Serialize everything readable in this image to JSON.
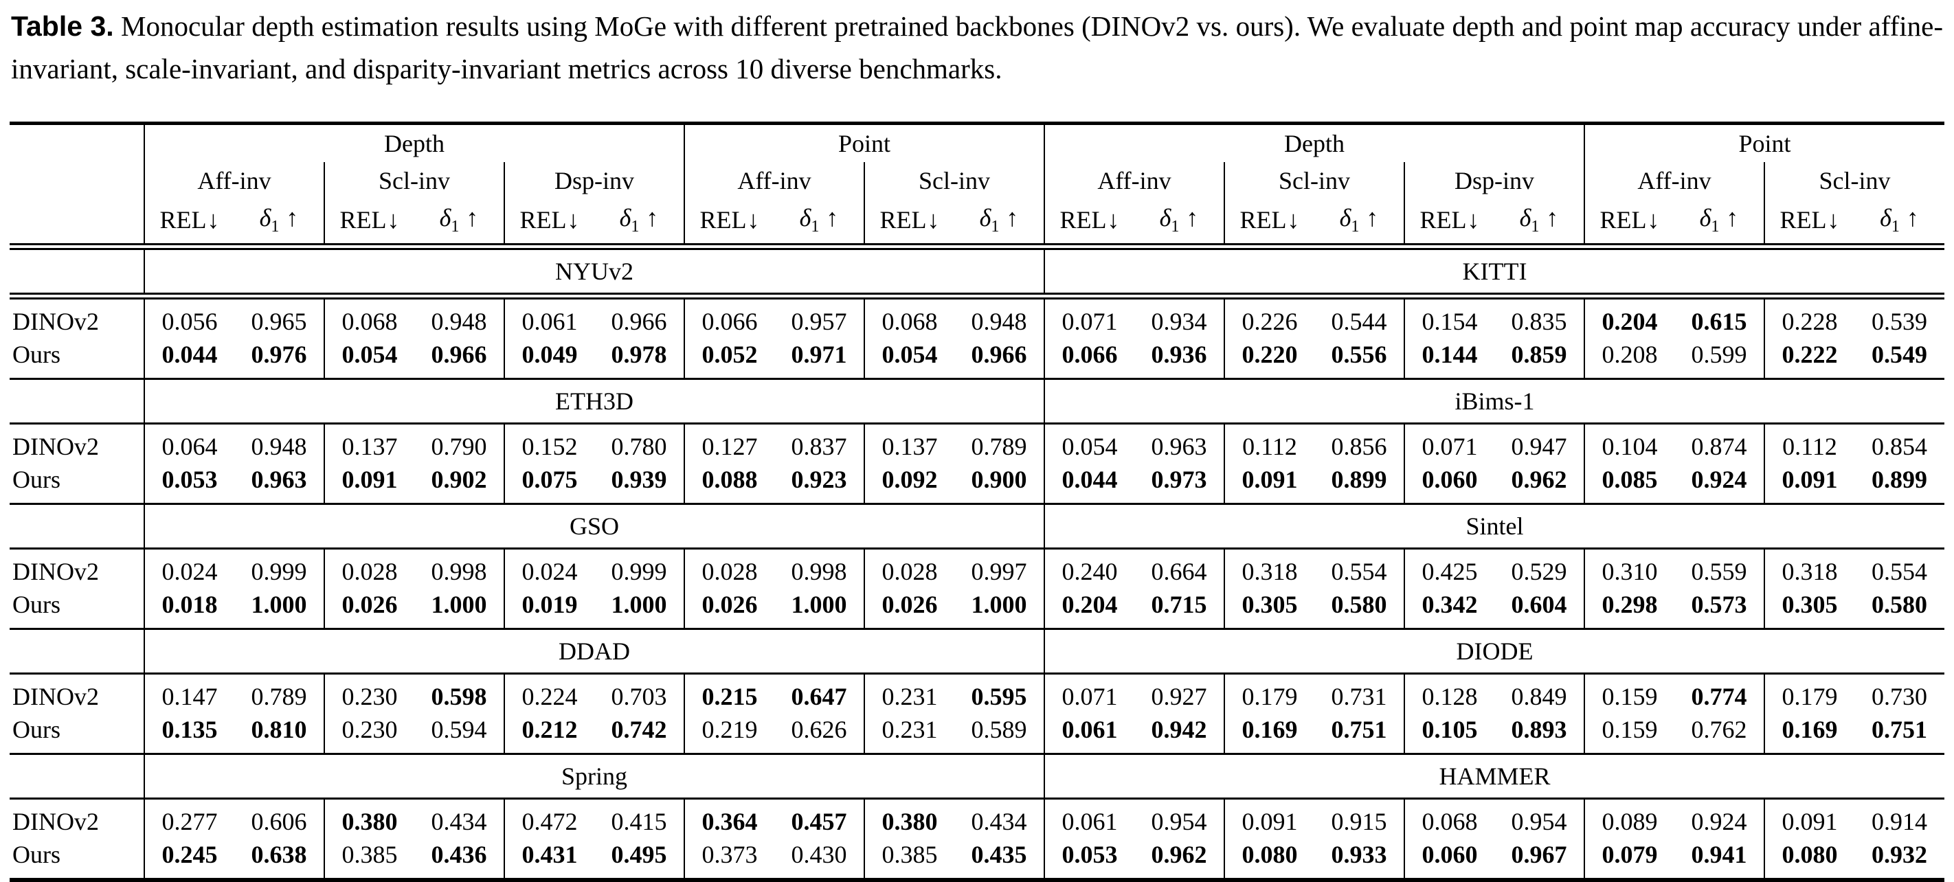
{
  "caption": {
    "label": "Table 3.",
    "text": "Monocular depth estimation results using MoGe with different pretrained backbones (DINOv2 vs. ours). We evaluate depth and point map accuracy under affine-invariant, scale-invariant, and disparity-invariant metrics across 10 diverse benchmarks."
  },
  "table": {
    "top_groups": [
      "Depth",
      "Point"
    ],
    "subgroups": [
      "Aff-inv",
      "Scl-inv",
      "Dsp-inv",
      "Aff-inv",
      "Scl-inv"
    ],
    "metrics": {
      "rel": "REL",
      "down": "↓",
      "delta": "δ",
      "sub": "1",
      "up": "↑"
    },
    "sections": [
      {
        "left_benchmark": "NYUv2",
        "right_benchmark": "KITTI",
        "rows": [
          {
            "model": "DINOv2",
            "left": [
              "0.056",
              "0.965",
              "0.068",
              "0.948",
              "0.061",
              "0.966",
              "0.066",
              "0.957",
              "0.068",
              "0.948"
            ],
            "left_bold": [
              0,
              0,
              0,
              0,
              0,
              0,
              0,
              0,
              0,
              0
            ],
            "right": [
              "0.071",
              "0.934",
              "0.226",
              "0.544",
              "0.154",
              "0.835",
              "0.204",
              "0.615",
              "0.228",
              "0.539"
            ],
            "right_bold": [
              0,
              0,
              0,
              0,
              0,
              0,
              1,
              1,
              0,
              0
            ]
          },
          {
            "model": "Ours",
            "left": [
              "0.044",
              "0.976",
              "0.054",
              "0.966",
              "0.049",
              "0.978",
              "0.052",
              "0.971",
              "0.054",
              "0.966"
            ],
            "left_bold": [
              1,
              1,
              1,
              1,
              1,
              1,
              1,
              1,
              1,
              1
            ],
            "right": [
              "0.066",
              "0.936",
              "0.220",
              "0.556",
              "0.144",
              "0.859",
              "0.208",
              "0.599",
              "0.222",
              "0.549"
            ],
            "right_bold": [
              1,
              1,
              1,
              1,
              1,
              1,
              0,
              0,
              1,
              1
            ]
          }
        ]
      },
      {
        "left_benchmark": "ETH3D",
        "right_benchmark": "iBims-1",
        "rows": [
          {
            "model": "DINOv2",
            "left": [
              "0.064",
              "0.948",
              "0.137",
              "0.790",
              "0.152",
              "0.780",
              "0.127",
              "0.837",
              "0.137",
              "0.789"
            ],
            "left_bold": [
              0,
              0,
              0,
              0,
              0,
              0,
              0,
              0,
              0,
              0
            ],
            "right": [
              "0.054",
              "0.963",
              "0.112",
              "0.856",
              "0.071",
              "0.947",
              "0.104",
              "0.874",
              "0.112",
              "0.854"
            ],
            "right_bold": [
              0,
              0,
              0,
              0,
              0,
              0,
              0,
              0,
              0,
              0
            ]
          },
          {
            "model": "Ours",
            "left": [
              "0.053",
              "0.963",
              "0.091",
              "0.902",
              "0.075",
              "0.939",
              "0.088",
              "0.923",
              "0.092",
              "0.900"
            ],
            "left_bold": [
              1,
              1,
              1,
              1,
              1,
              1,
              1,
              1,
              1,
              1
            ],
            "right": [
              "0.044",
              "0.973",
              "0.091",
              "0.899",
              "0.060",
              "0.962",
              "0.085",
              "0.924",
              "0.091",
              "0.899"
            ],
            "right_bold": [
              1,
              1,
              1,
              1,
              1,
              1,
              1,
              1,
              1,
              1
            ]
          }
        ]
      },
      {
        "left_benchmark": "GSO",
        "right_benchmark": "Sintel",
        "rows": [
          {
            "model": "DINOv2",
            "left": [
              "0.024",
              "0.999",
              "0.028",
              "0.998",
              "0.024",
              "0.999",
              "0.028",
              "0.998",
              "0.028",
              "0.997"
            ],
            "left_bold": [
              0,
              0,
              0,
              0,
              0,
              0,
              0,
              0,
              0,
              0
            ],
            "right": [
              "0.240",
              "0.664",
              "0.318",
              "0.554",
              "0.425",
              "0.529",
              "0.310",
              "0.559",
              "0.318",
              "0.554"
            ],
            "right_bold": [
              0,
              0,
              0,
              0,
              0,
              0,
              0,
              0,
              0,
              0
            ]
          },
          {
            "model": "Ours",
            "left": [
              "0.018",
              "1.000",
              "0.026",
              "1.000",
              "0.019",
              "1.000",
              "0.026",
              "1.000",
              "0.026",
              "1.000"
            ],
            "left_bold": [
              1,
              1,
              1,
              1,
              1,
              1,
              1,
              1,
              1,
              1
            ],
            "right": [
              "0.204",
              "0.715",
              "0.305",
              "0.580",
              "0.342",
              "0.604",
              "0.298",
              "0.573",
              "0.305",
              "0.580"
            ],
            "right_bold": [
              1,
              1,
              1,
              1,
              1,
              1,
              1,
              1,
              1,
              1
            ]
          }
        ]
      },
      {
        "left_benchmark": "DDAD",
        "right_benchmark": "DIODE",
        "rows": [
          {
            "model": "DINOv2",
            "left": [
              "0.147",
              "0.789",
              "0.230",
              "0.598",
              "0.224",
              "0.703",
              "0.215",
              "0.647",
              "0.231",
              "0.595"
            ],
            "left_bold": [
              0,
              0,
              0,
              1,
              0,
              0,
              1,
              1,
              0,
              1
            ],
            "right": [
              "0.071",
              "0.927",
              "0.179",
              "0.731",
              "0.128",
              "0.849",
              "0.159",
              "0.774",
              "0.179",
              "0.730"
            ],
            "right_bold": [
              0,
              0,
              0,
              0,
              0,
              0,
              0,
              1,
              0,
              0
            ]
          },
          {
            "model": "Ours",
            "left": [
              "0.135",
              "0.810",
              "0.230",
              "0.594",
              "0.212",
              "0.742",
              "0.219",
              "0.626",
              "0.231",
              "0.589"
            ],
            "left_bold": [
              1,
              1,
              0,
              0,
              1,
              1,
              0,
              0,
              0,
              0
            ],
            "right": [
              "0.061",
              "0.942",
              "0.169",
              "0.751",
              "0.105",
              "0.893",
              "0.159",
              "0.762",
              "0.169",
              "0.751"
            ],
            "right_bold": [
              1,
              1,
              1,
              1,
              1,
              1,
              0,
              0,
              1,
              1
            ]
          }
        ]
      },
      {
        "left_benchmark": "Spring",
        "right_benchmark": "HAMMER",
        "rows": [
          {
            "model": "DINOv2",
            "left": [
              "0.277",
              "0.606",
              "0.380",
              "0.434",
              "0.472",
              "0.415",
              "0.364",
              "0.457",
              "0.380",
              "0.434"
            ],
            "left_bold": [
              0,
              0,
              1,
              0,
              0,
              0,
              1,
              1,
              1,
              0
            ],
            "right": [
              "0.061",
              "0.954",
              "0.091",
              "0.915",
              "0.068",
              "0.954",
              "0.089",
              "0.924",
              "0.091",
              "0.914"
            ],
            "right_bold": [
              0,
              0,
              0,
              0,
              0,
              0,
              0,
              0,
              0,
              0
            ]
          },
          {
            "model": "Ours",
            "left": [
              "0.245",
              "0.638",
              "0.385",
              "0.436",
              "0.431",
              "0.495",
              "0.373",
              "0.430",
              "0.385",
              "0.435"
            ],
            "left_bold": [
              1,
              1,
              0,
              1,
              1,
              1,
              0,
              0,
              0,
              1
            ],
            "right": [
              "0.053",
              "0.962",
              "0.080",
              "0.933",
              "0.060",
              "0.967",
              "0.079",
              "0.941",
              "0.080",
              "0.932"
            ],
            "right_bold": [
              1,
              1,
              1,
              1,
              1,
              1,
              1,
              1,
              1,
              1
            ]
          }
        ]
      }
    ]
  }
}
